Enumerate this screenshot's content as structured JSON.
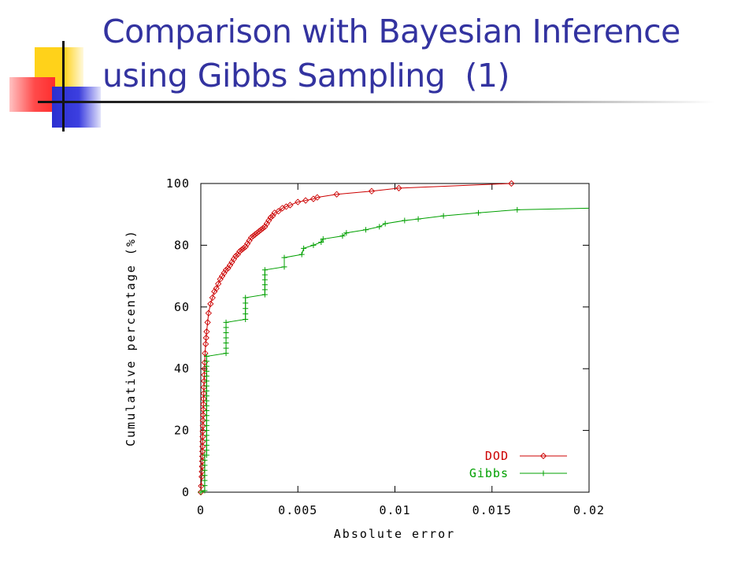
{
  "slide": {
    "title_line1": "Comparison with Bayesian Inference",
    "title_line2": "using Gibbs Sampling  (1)"
  },
  "colors": {
    "title": "#3333a0",
    "dod": "#cc0000",
    "gibbs": "#00a000",
    "accent_yellow": "#ffd21a",
    "accent_red": "#ff4a4a",
    "accent_blue": "#3c3fe0"
  },
  "chart_data": {
    "type": "line",
    "xlabel": "Absolute error",
    "ylabel": "Cumulative percentage (%)",
    "xlim": [
      0,
      0.02
    ],
    "ylim": [
      0,
      100
    ],
    "x_ticks": [
      "0",
      "0.005",
      "0.01",
      "0.015",
      "0.02"
    ],
    "y_ticks": [
      "0",
      "20",
      "40",
      "60",
      "80",
      "100"
    ],
    "legend_position": "bottom-right",
    "grid": false,
    "series": [
      {
        "name": "DOD",
        "marker": "diamond",
        "points": [
          [
            0,
            0
          ],
          [
            2e-05,
            2
          ],
          [
            5e-05,
            5
          ],
          [
            8e-05,
            10
          ],
          [
            0.0001,
            18
          ],
          [
            0.00012,
            25
          ],
          [
            0.00015,
            32
          ],
          [
            0.00018,
            38
          ],
          [
            0.0002,
            42
          ],
          [
            0.00022,
            45
          ],
          [
            0.00025,
            48
          ],
          [
            0.0003,
            52
          ],
          [
            0.00035,
            55
          ],
          [
            0.0004,
            58
          ],
          [
            0.0005,
            61
          ],
          [
            0.0006,
            63
          ],
          [
            0.0007,
            65
          ],
          [
            0.0008,
            66
          ],
          [
            0.0009,
            67.5
          ],
          [
            0.001,
            69
          ],
          [
            0.0011,
            70
          ],
          [
            0.0012,
            71
          ],
          [
            0.0013,
            72
          ],
          [
            0.0014,
            72.5
          ],
          [
            0.0015,
            73.5
          ],
          [
            0.0016,
            74.5
          ],
          [
            0.0017,
            75.5
          ],
          [
            0.0018,
            76.5
          ],
          [
            0.0019,
            77
          ],
          [
            0.002,
            78
          ],
          [
            0.0021,
            78.5
          ],
          [
            0.0022,
            79
          ],
          [
            0.0023,
            79.5
          ],
          [
            0.0024,
            80.5
          ],
          [
            0.0025,
            81.5
          ],
          [
            0.0026,
            82.5
          ],
          [
            0.0027,
            83
          ],
          [
            0.0028,
            83.5
          ],
          [
            0.0029,
            84
          ],
          [
            0.003,
            84.5
          ],
          [
            0.0031,
            85
          ],
          [
            0.0032,
            85.5
          ],
          [
            0.0033,
            86
          ],
          [
            0.0034,
            87
          ],
          [
            0.0035,
            88
          ],
          [
            0.0036,
            89
          ],
          [
            0.0037,
            89.5
          ],
          [
            0.0038,
            90.5
          ],
          [
            0.004,
            91
          ],
          [
            0.0042,
            92
          ],
          [
            0.0044,
            92.5
          ],
          [
            0.0046,
            93
          ],
          [
            0.005,
            94
          ],
          [
            0.0054,
            94.5
          ],
          [
            0.0058,
            95
          ],
          [
            0.006,
            95.5
          ],
          [
            0.007,
            96.5
          ],
          [
            0.0088,
            97.5
          ],
          [
            0.0102,
            98.5
          ],
          [
            0.016,
            100
          ]
        ]
      },
      {
        "name": "Gibbs",
        "marker": "plus",
        "points": [
          [
            0,
            0
          ],
          [
            0.0002,
            0.5
          ],
          [
            0.0002,
            12
          ],
          [
            0.0003,
            12
          ],
          [
            0.0003,
            44
          ],
          [
            0.0013,
            45
          ],
          [
            0.0013,
            55
          ],
          [
            0.0023,
            56
          ],
          [
            0.0023,
            63
          ],
          [
            0.0033,
            64
          ],
          [
            0.0033,
            72
          ],
          [
            0.0043,
            73
          ],
          [
            0.0043,
            76
          ],
          [
            0.0052,
            77
          ],
          [
            0.0053,
            79
          ],
          [
            0.0058,
            80
          ],
          [
            0.0062,
            81
          ],
          [
            0.0063,
            82
          ],
          [
            0.0073,
            83
          ],
          [
            0.0075,
            84
          ],
          [
            0.0085,
            85
          ],
          [
            0.0092,
            86
          ],
          [
            0.0095,
            87
          ],
          [
            0.0105,
            88
          ],
          [
            0.0112,
            88.5
          ],
          [
            0.0125,
            89.5
          ],
          [
            0.0143,
            90.5
          ],
          [
            0.0163,
            91.5
          ],
          [
            0.02,
            92
          ]
        ]
      }
    ]
  }
}
